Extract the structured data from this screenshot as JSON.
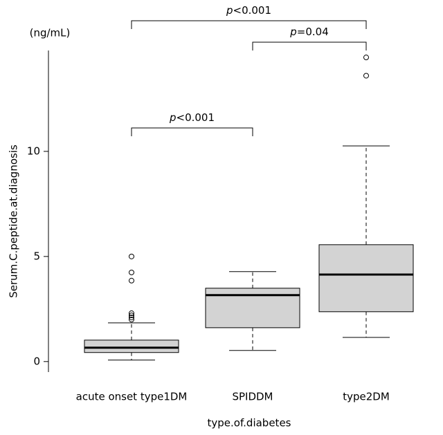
{
  "chart_data": {
    "type": "box",
    "y_label": "Serum.C.peptide.at.diagnosis",
    "x_label": "type.of.diabetes",
    "unit_label": "(ng/mL)",
    "categories": [
      "acute onset type1DM",
      "SPIDDM",
      "type2DM"
    ],
    "boxes": [
      {
        "whislo": 0.07,
        "q1": 0.43,
        "med": 0.66,
        "q3": 1.02,
        "whishi": 1.84,
        "fliers": [
          2.0,
          2.1,
          2.2,
          2.3,
          3.85,
          4.24,
          5.0
        ]
      },
      {
        "whislo": 0.53,
        "q1": 1.61,
        "med": 3.16,
        "q3": 3.49,
        "whishi": 4.28,
        "fliers": []
      },
      {
        "whislo": 1.15,
        "q1": 2.37,
        "med": 4.14,
        "q3": 5.56,
        "whishi": 10.26,
        "fliers": [
          13.6,
          14.47
        ]
      }
    ],
    "color": "#d3d3d3",
    "ylim": [
      -0.5,
      14.8
    ],
    "yticks": [
      0,
      5,
      10
    ],
    "comparisons": [
      {
        "from": "acute onset type1DM",
        "to": "SPIDDM",
        "label": "p<0.001"
      },
      {
        "from": "SPIDDM",
        "to": "type2DM",
        "label": "p=0.04"
      },
      {
        "from": "acute onset type1DM",
        "to": "type2DM",
        "label": "p<0.001"
      }
    ]
  }
}
